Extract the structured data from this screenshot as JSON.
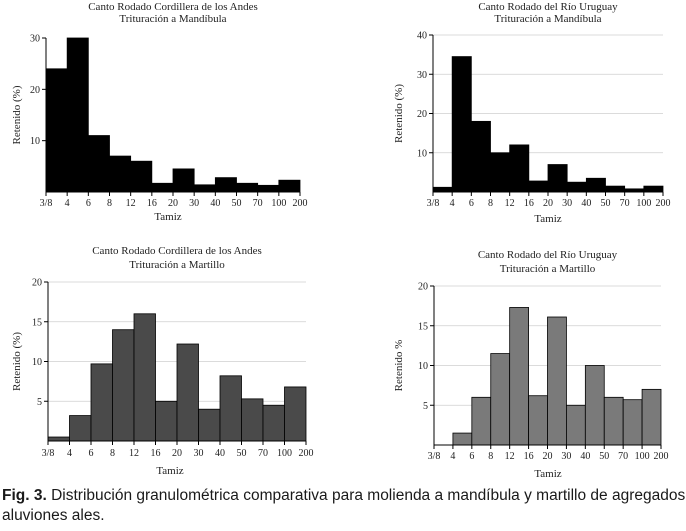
{
  "caption": {
    "label": "Fig. 3.",
    "text": "Distribución granulométrica comparativa para molienda a mandíbula y martillo de agregados aluviones ales."
  },
  "chart_data": [
    {
      "type": "bar",
      "title": "Canto Rodado Cordillera de los Andes",
      "subtitle": "Trituración a Mandíbula",
      "xlabel": "Tamiz",
      "ylabel": "Retenido (%)",
      "xticks": [
        "3/8",
        "4",
        "6",
        "8",
        "12",
        "16",
        "20",
        "30",
        "40",
        "50",
        "70",
        "100",
        "200"
      ],
      "values": [
        24,
        30,
        11,
        7,
        6,
        1.7,
        4.5,
        1.4,
        2.8,
        1.7,
        1.3,
        2.3
      ],
      "ylim": [
        0,
        30
      ],
      "yticks": [
        10,
        20,
        30
      ],
      "color": "#000000",
      "grid": false
    },
    {
      "type": "bar",
      "title": "Canto Rodado del Río Uruguay",
      "subtitle": "Trituración a Mandíbula",
      "xlabel": "Tamiz",
      "ylabel": "Retenido (%)",
      "xticks": [
        "3/8",
        "4",
        "6",
        "8",
        "12",
        "16",
        "20",
        "30",
        "40",
        "50",
        "70",
        "100",
        "200"
      ],
      "values": [
        1.2,
        34.5,
        18,
        10,
        12,
        2.8,
        7,
        2.5,
        3.5,
        1.5,
        0.8,
        1.5
      ],
      "ylim": [
        0,
        40
      ],
      "yticks": [
        10,
        20,
        30,
        40
      ],
      "color": "#000000",
      "grid": true
    },
    {
      "type": "bar",
      "title": "Canto Rodado Cordillera de los Andes",
      "subtitle": "Trituración a Martillo",
      "xlabel": "Tamiz",
      "ylabel": "Retenido (%)",
      "xticks": [
        "3/8",
        "4",
        "6",
        "8",
        "12",
        "16",
        "20",
        "30",
        "40",
        "50",
        "70",
        "100",
        "200"
      ],
      "values": [
        0.5,
        3.2,
        9.7,
        14,
        16,
        5,
        12.2,
        4,
        8.2,
        5.3,
        4.5,
        6.8
      ],
      "ylim": [
        0,
        20
      ],
      "yticks": [
        5,
        10,
        15,
        20
      ],
      "color": "#4a4a4a",
      "grid": true
    },
    {
      "type": "bar",
      "title": "Canto Rodado del Río Uruguay",
      "subtitle": "Trituración a Martillo",
      "xlabel": "Tamiz",
      "ylabel": "Retenido %",
      "xticks": [
        "3/8",
        "4",
        "6",
        "8",
        "12",
        "16",
        "20",
        "30",
        "40",
        "50",
        "70",
        "100",
        "200"
      ],
      "values": [
        0,
        1.5,
        6,
        11.5,
        17.3,
        6.2,
        16.1,
        5,
        10,
        6,
        5.7,
        7
      ],
      "ylim": [
        0,
        20
      ],
      "yticks": [
        5,
        10,
        15,
        20
      ],
      "color": "#7a7a7a",
      "grid": true
    }
  ]
}
